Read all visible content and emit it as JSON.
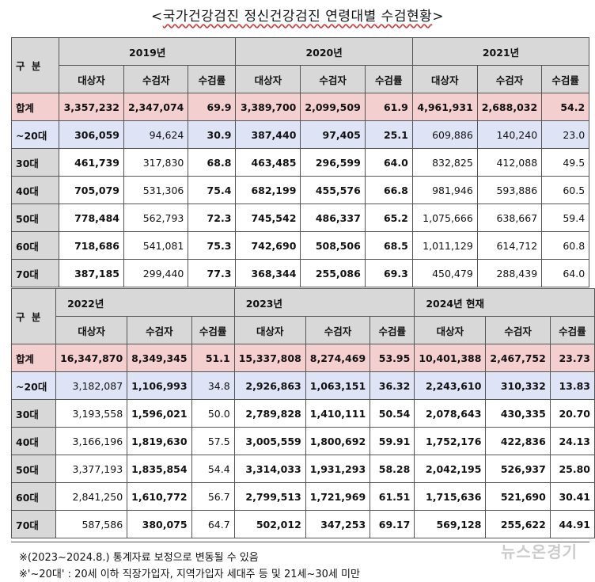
{
  "title": "국가건강검진 정신건강검진 연령대별 수검현황",
  "gubun_label": "구 분",
  "col_headers": [
    "대상자",
    "수검자",
    "수검률"
  ],
  "top_years": [
    "2019년",
    "2020년",
    "2021년"
  ],
  "bottom_years": [
    "2022년",
    "2023년",
    "2024년 현재"
  ],
  "top_rows": [
    {
      "label": "합계",
      "cells": [
        "3,357,232",
        "2,347,074",
        "69.9",
        "3,389,700",
        "2,099,509",
        "61.9",
        "4,961,931",
        "2,688,032",
        "54.2"
      ]
    },
    {
      "label": "~20대",
      "cells": [
        "306,059",
        "94,624",
        "30.9",
        "387,440",
        "97,405",
        "25.1",
        "609,886",
        "140,240",
        "23.0"
      ]
    },
    {
      "label": "30대",
      "cells": [
        "461,739",
        "317,830",
        "68.8",
        "463,485",
        "296,599",
        "64.0",
        "832,825",
        "412,088",
        "49.5"
      ]
    },
    {
      "label": "40대",
      "cells": [
        "705,079",
        "531,306",
        "75.4",
        "682,199",
        "455,576",
        "66.8",
        "981,946",
        "593,886",
        "60.5"
      ]
    },
    {
      "label": "50대",
      "cells": [
        "778,484",
        "562,793",
        "72.3",
        "745,542",
        "486,337",
        "65.2",
        "1,075,666",
        "638,667",
        "59.4"
      ]
    },
    {
      "label": "60대",
      "cells": [
        "718,686",
        "541,081",
        "75.3",
        "742,690",
        "508,506",
        "68.5",
        "1,011,129",
        "614,712",
        "60.8"
      ]
    },
    {
      "label": "70대",
      "cells": [
        "387,185",
        "299,440",
        "77.3",
        "368,344",
        "255,086",
        "69.3",
        "450,479",
        "288,439",
        "64.0"
      ]
    }
  ],
  "bottom_rows": [
    {
      "label": "합계",
      "cells": [
        "16,347,870",
        "8,349,345",
        "51.1",
        "15,337,808",
        "8,274,469",
        "53.95",
        "10,401,388",
        "2,467,752",
        "23.73"
      ]
    },
    {
      "label": "~20대",
      "cells": [
        "3,182,087",
        "1,106,993",
        "34.8",
        "2,926,863",
        "1,063,151",
        "36.32",
        "2,243,610",
        "310,332",
        "13.83"
      ]
    },
    {
      "label": "30대",
      "cells": [
        "3,193,558",
        "1,596,021",
        "50.0",
        "2,789,828",
        "1,410,111",
        "50.54",
        "2,078,643",
        "430,335",
        "20.70"
      ]
    },
    {
      "label": "40대",
      "cells": [
        "3,166,196",
        "1,819,630",
        "57.5",
        "3,005,559",
        "1,800,692",
        "59.91",
        "1,752,176",
        "422,836",
        "24.13"
      ]
    },
    {
      "label": "50대",
      "cells": [
        "3,377,193",
        "1,835,854",
        "54.4",
        "3,314,033",
        "1,931,293",
        "58.28",
        "2,042,195",
        "526,937",
        "25.80"
      ]
    },
    {
      "label": "60대",
      "cells": [
        "2,841,250",
        "1,610,772",
        "56.7",
        "2,799,513",
        "1,721,969",
        "61.51",
        "1,715,636",
        "521,690",
        "30.41"
      ]
    },
    {
      "label": "70대",
      "cells": [
        "587,586",
        "380,075",
        "64.7",
        "502,012",
        "347,253",
        "69.17",
        "569,128",
        "255,622",
        "44.91"
      ]
    }
  ],
  "notes": [
    "※(2023~2024.8.) 통계자료 보정으로 변동될 수 있음",
    "※'~20대' : 20세 이하 직장가입자, 지역가입자 세대주 등 및 21세~30세 미만"
  ],
  "watermark": "뉴스온경기"
}
